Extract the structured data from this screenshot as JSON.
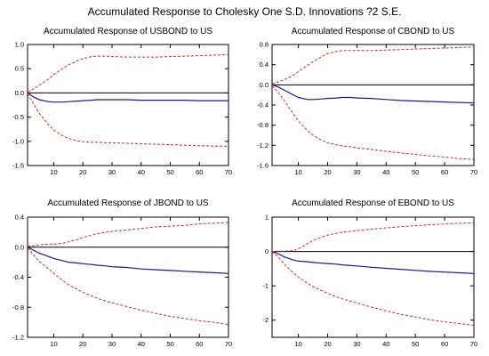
{
  "figure_title": "Accumulated Response to Cholesky One S.D. Innovations ?2 S.E.",
  "colors": {
    "response": "#1a1a8c",
    "bands": "#c0302b",
    "zero": "#000000"
  },
  "chart_data": [
    {
      "type": "line",
      "title": "Accumulated Response of USBOND to US",
      "xlabel": "",
      "ylabel": "",
      "xlim": [
        1,
        70
      ],
      "ylim": [
        -1.5,
        1.0
      ],
      "xticks": [
        10,
        20,
        30,
        40,
        50,
        60,
        70
      ],
      "yticks": [
        "1.0",
        "0.5",
        "0.0",
        "-0.5",
        "-1.0",
        "-1.5"
      ],
      "zero_line": 0,
      "x": [
        1,
        3,
        5,
        8,
        10,
        13,
        15,
        18,
        20,
        23,
        25,
        28,
        30,
        35,
        40,
        45,
        50,
        55,
        60,
        65,
        70
      ],
      "series": [
        {
          "role": "response",
          "values": [
            0.0,
            -0.08,
            -0.14,
            -0.18,
            -0.19,
            -0.19,
            -0.18,
            -0.17,
            -0.16,
            -0.15,
            -0.14,
            -0.14,
            -0.14,
            -0.14,
            -0.15,
            -0.15,
            -0.15,
            -0.15,
            -0.16,
            -0.16,
            -0.16
          ]
        },
        {
          "role": "upper",
          "values": [
            0.02,
            0.08,
            0.16,
            0.28,
            0.38,
            0.5,
            0.58,
            0.66,
            0.71,
            0.75,
            0.76,
            0.76,
            0.75,
            0.74,
            0.74,
            0.74,
            0.75,
            0.76,
            0.77,
            0.78,
            0.79
          ]
        },
        {
          "role": "lower",
          "values": [
            -0.02,
            -0.22,
            -0.42,
            -0.64,
            -0.77,
            -0.88,
            -0.94,
            -0.99,
            -1.01,
            -1.02,
            -1.02,
            -1.03,
            -1.03,
            -1.04,
            -1.05,
            -1.06,
            -1.07,
            -1.08,
            -1.09,
            -1.1,
            -1.1
          ]
        }
      ]
    },
    {
      "type": "line",
      "title": "Accumulated Response of CBOND to US",
      "xlabel": "",
      "ylabel": "",
      "xlim": [
        1,
        70
      ],
      "ylim": [
        -1.6,
        0.8
      ],
      "xticks": [
        10,
        20,
        30,
        40,
        50,
        60,
        70
      ],
      "yticks": [
        "0.8",
        "0.4",
        "0.0",
        "-0.4",
        "-0.8",
        "-1.2",
        "-1.6"
      ],
      "zero_line": 0,
      "x": [
        1,
        3,
        5,
        8,
        10,
        13,
        15,
        18,
        20,
        23,
        25,
        28,
        30,
        35,
        40,
        45,
        50,
        55,
        60,
        65,
        70
      ],
      "series": [
        {
          "role": "response",
          "values": [
            0.0,
            -0.04,
            -0.1,
            -0.19,
            -0.25,
            -0.29,
            -0.29,
            -0.28,
            -0.27,
            -0.26,
            -0.25,
            -0.25,
            -0.26,
            -0.27,
            -0.29,
            -0.31,
            -0.32,
            -0.33,
            -0.34,
            -0.35,
            -0.36
          ]
        },
        {
          "role": "upper",
          "values": [
            0.02,
            0.06,
            0.1,
            0.18,
            0.26,
            0.38,
            0.46,
            0.56,
            0.62,
            0.66,
            0.68,
            0.68,
            0.68,
            0.68,
            0.69,
            0.7,
            0.71,
            0.72,
            0.73,
            0.74,
            0.75
          ]
        },
        {
          "role": "lower",
          "values": [
            -0.02,
            -0.14,
            -0.3,
            -0.55,
            -0.72,
            -0.9,
            -1.0,
            -1.1,
            -1.15,
            -1.19,
            -1.21,
            -1.23,
            -1.25,
            -1.28,
            -1.32,
            -1.35,
            -1.38,
            -1.41,
            -1.43,
            -1.46,
            -1.48
          ]
        }
      ]
    },
    {
      "type": "line",
      "title": "Accumulated Response of JBOND to US",
      "xlabel": "",
      "ylabel": "",
      "xlim": [
        1,
        70
      ],
      "ylim": [
        -1.2,
        0.4
      ],
      "xticks": [
        10,
        20,
        30,
        40,
        50,
        60,
        70
      ],
      "yticks": [
        "0.4",
        "0.0",
        "-0.4",
        "-0.8",
        "-1.2"
      ],
      "zero_line": 0,
      "x": [
        1,
        3,
        5,
        8,
        10,
        13,
        15,
        18,
        20,
        23,
        25,
        28,
        30,
        35,
        40,
        45,
        50,
        55,
        60,
        65,
        70
      ],
      "series": [
        {
          "role": "response",
          "values": [
            0.0,
            -0.04,
            -0.08,
            -0.12,
            -0.15,
            -0.18,
            -0.2,
            -0.21,
            -0.22,
            -0.23,
            -0.24,
            -0.25,
            -0.26,
            -0.27,
            -0.29,
            -0.3,
            -0.31,
            -0.32,
            -0.33,
            -0.34,
            -0.35
          ]
        },
        {
          "role": "upper",
          "values": [
            0.01,
            0.02,
            0.03,
            0.04,
            0.04,
            0.05,
            0.07,
            0.1,
            0.13,
            0.16,
            0.18,
            0.2,
            0.21,
            0.23,
            0.25,
            0.27,
            0.28,
            0.29,
            0.31,
            0.32,
            0.33
          ]
        },
        {
          "role": "lower",
          "values": [
            -0.01,
            -0.1,
            -0.19,
            -0.28,
            -0.35,
            -0.44,
            -0.5,
            -0.56,
            -0.6,
            -0.65,
            -0.68,
            -0.72,
            -0.74,
            -0.79,
            -0.84,
            -0.88,
            -0.92,
            -0.95,
            -0.98,
            -1.0,
            -1.03
          ]
        }
      ]
    },
    {
      "type": "line",
      "title": "Accumulated Response of EBOND to US",
      "xlabel": "",
      "ylabel": "",
      "xlim": [
        1,
        70
      ],
      "ylim": [
        -2.5,
        1.0
      ],
      "xticks": [
        10,
        20,
        30,
        40,
        50,
        60,
        70
      ],
      "yticks": [
        "1",
        "0",
        "-1",
        "-2"
      ],
      "ytick_values": [
        1,
        0,
        -1,
        -2
      ],
      "zero_line": 0,
      "x": [
        1,
        3,
        5,
        8,
        10,
        13,
        15,
        18,
        20,
        23,
        25,
        28,
        30,
        35,
        40,
        45,
        50,
        55,
        60,
        65,
        70
      ],
      "series": [
        {
          "role": "response",
          "values": [
            0.0,
            -0.06,
            -0.15,
            -0.24,
            -0.28,
            -0.3,
            -0.32,
            -0.34,
            -0.35,
            -0.37,
            -0.39,
            -0.41,
            -0.42,
            -0.46,
            -0.49,
            -0.52,
            -0.55,
            -0.58,
            -0.6,
            -0.62,
            -0.64
          ]
        },
        {
          "role": "upper",
          "values": [
            0.0,
            0.01,
            0.01,
            0.02,
            0.08,
            0.22,
            0.32,
            0.42,
            0.48,
            0.53,
            0.56,
            0.59,
            0.61,
            0.65,
            0.69,
            0.72,
            0.75,
            0.78,
            0.8,
            0.82,
            0.84
          ]
        },
        {
          "role": "lower",
          "values": [
            0.0,
            -0.15,
            -0.35,
            -0.6,
            -0.75,
            -0.92,
            -1.02,
            -1.14,
            -1.22,
            -1.32,
            -1.38,
            -1.45,
            -1.5,
            -1.62,
            -1.73,
            -1.83,
            -1.91,
            -1.99,
            -2.05,
            -2.1,
            -2.15
          ]
        }
      ]
    }
  ]
}
